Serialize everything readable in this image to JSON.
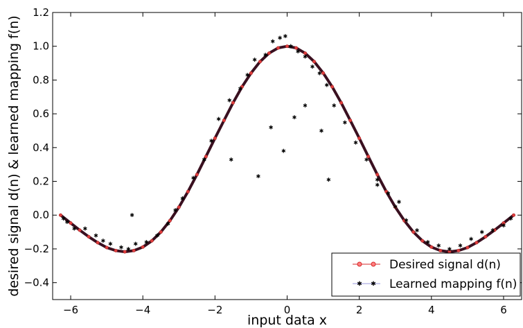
{
  "chart_data": {
    "type": "line",
    "title": "",
    "xlabel": "input data x",
    "ylabel": "desired signal d(n) & learned mapping f(n)",
    "xlim": [
      -6.5,
      6.5
    ],
    "ylim": [
      -0.5,
      1.2
    ],
    "xticks": [
      -6,
      -4,
      -2,
      0,
      2,
      4,
      6
    ],
    "yticks": [
      -0.4,
      -0.2,
      0.0,
      0.2,
      0.4,
      0.6,
      0.8,
      1.0,
      1.2
    ],
    "ytick_labels": [
      "−0.4",
      "−0.2",
      "0.0",
      "0.2",
      "0.4",
      "0.6",
      "0.8",
      "1.0",
      "1.2"
    ],
    "xtick_labels": [
      "−6",
      "−4",
      "−2",
      "0",
      "2",
      "4",
      "6"
    ],
    "grid": false,
    "legend_position": "bottom-right",
    "series": [
      {
        "name": "Desired signal d(n)",
        "color": "#d62728",
        "marker": "circle",
        "x": [
          -6.28,
          -6.0,
          -5.75,
          -5.5,
          -5.25,
          -5.0,
          -4.75,
          -4.5,
          -4.25,
          -4.0,
          -3.75,
          -3.5,
          -3.25,
          -3.0,
          -2.75,
          -2.5,
          -2.25,
          -2.0,
          -1.75,
          -1.5,
          -1.25,
          -1.0,
          -0.75,
          -0.5,
          -0.25,
          0.0,
          0.25,
          0.5,
          0.75,
          1.0,
          1.25,
          1.5,
          1.75,
          2.0,
          2.25,
          2.5,
          2.75,
          3.0,
          3.25,
          3.5,
          3.75,
          4.0,
          4.25,
          4.5,
          4.75,
          5.0,
          5.25,
          5.5,
          5.75,
          6.0,
          6.28
        ],
        "values": [
          0.0,
          -0.047,
          -0.089,
          -0.128,
          -0.163,
          -0.192,
          -0.21,
          -0.217,
          -0.21,
          -0.189,
          -0.152,
          -0.1,
          -0.033,
          0.047,
          0.139,
          0.24,
          0.347,
          0.455,
          0.561,
          0.665,
          0.76,
          0.841,
          0.909,
          0.959,
          0.99,
          1.0,
          0.99,
          0.959,
          0.909,
          0.841,
          0.76,
          0.665,
          0.561,
          0.455,
          0.347,
          0.24,
          0.139,
          0.047,
          -0.033,
          -0.1,
          -0.152,
          -0.189,
          -0.21,
          -0.217,
          -0.21,
          -0.192,
          -0.163,
          -0.128,
          -0.089,
          -0.047,
          0.0
        ]
      },
      {
        "name": "Learned mapping f(n)",
        "color": "#7777cc",
        "marker": "star",
        "x": [
          -6.2,
          -6.1,
          -5.9,
          -5.6,
          -5.3,
          -5.1,
          -4.9,
          -4.6,
          -4.4,
          -4.2,
          -3.9,
          -3.6,
          -3.3,
          -3.1,
          -2.9,
          -2.6,
          -2.3,
          -2.1,
          -1.9,
          -1.6,
          -1.3,
          -1.1,
          -0.9,
          -0.6,
          -0.4,
          -0.2,
          -0.05,
          0.1,
          0.3,
          0.5,
          0.7,
          0.9,
          1.1,
          1.3,
          1.6,
          1.9,
          2.2,
          2.5,
          2.8,
          3.0,
          3.3,
          3.6,
          3.9,
          4.2,
          4.5,
          4.8,
          5.1,
          5.4,
          5.7,
          6.0,
          6.2,
          -4.3,
          -0.8,
          -0.45,
          -0.1,
          0.2,
          0.5,
          0.95,
          1.15,
          -1.55,
          2.5,
          3.1
        ],
        "values": [
          -0.02,
          -0.04,
          -0.08,
          -0.08,
          -0.12,
          -0.15,
          -0.17,
          -0.19,
          -0.2,
          -0.17,
          -0.16,
          -0.12,
          -0.05,
          0.03,
          0.1,
          0.22,
          0.33,
          0.44,
          0.57,
          0.68,
          0.75,
          0.83,
          0.92,
          0.95,
          1.03,
          1.05,
          1.06,
          1.0,
          0.97,
          0.94,
          0.88,
          0.84,
          0.77,
          0.65,
          0.55,
          0.43,
          0.33,
          0.21,
          0.13,
          0.05,
          -0.03,
          -0.09,
          -0.16,
          -0.18,
          -0.2,
          -0.18,
          -0.14,
          -0.1,
          -0.09,
          -0.06,
          -0.02,
          0.0,
          0.23,
          0.52,
          0.38,
          0.58,
          0.65,
          0.5,
          0.21,
          0.33,
          0.18,
          0.08
        ]
      }
    ]
  }
}
